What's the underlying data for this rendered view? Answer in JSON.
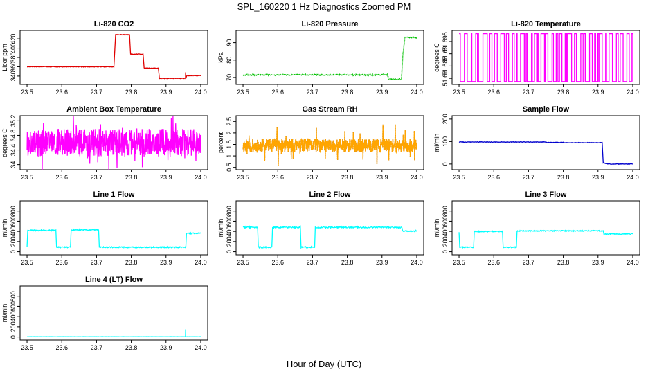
{
  "figure": {
    "title": "SPL_160220  1 Hz Diagnostics Zoomed PM",
    "xlabel": "Hour of Day (UTC)"
  },
  "chart_data": [
    {
      "type": "line",
      "title": "Li-820 CO2",
      "ylabel": "Licor ppm",
      "color": "#e00000",
      "xlim": [
        23.48,
        24.02
      ],
      "ylim": [
        322,
        438
      ],
      "xticks": [
        23.5,
        23.6,
        23.7,
        23.8,
        23.9,
        24.0
      ],
      "yticks": [
        340,
        360,
        380,
        400,
        420
      ],
      "series": [
        {
          "name": "CO2",
          "style": "steps",
          "noise": 0.6,
          "spikes": [
            [
              23.956,
              348
            ]
          ],
          "points": [
            [
              23.5,
              360
            ],
            [
              23.75,
              360
            ],
            [
              23.755,
              429
            ],
            [
              23.795,
              429
            ],
            [
              23.798,
              387
            ],
            [
              23.834,
              387
            ],
            [
              23.837,
              357
            ],
            [
              23.878,
              357
            ],
            [
              23.881,
              335
            ],
            [
              23.957,
              335
            ],
            [
              23.96,
              341
            ],
            [
              24.0,
              341
            ]
          ]
        }
      ]
    },
    {
      "type": "line",
      "title": "Li-820 Pressure",
      "ylabel": "kPa",
      "color": "#00c000",
      "xlim": [
        23.48,
        24.02
      ],
      "ylim": [
        66,
        97
      ],
      "xticks": [
        23.5,
        23.6,
        23.7,
        23.8,
        23.9,
        24.0
      ],
      "yticks": [
        70,
        80,
        90
      ],
      "series": [
        {
          "name": "Pressure",
          "style": "dotted",
          "noise": 0.3,
          "points": [
            [
              23.5,
              71.5
            ],
            [
              23.915,
              71.5
            ],
            [
              23.92,
              69
            ],
            [
              23.956,
              69
            ],
            [
              23.96,
              83
            ],
            [
              23.966,
              93
            ],
            [
              24.0,
              93
            ]
          ]
        }
      ]
    },
    {
      "type": "line",
      "title": "Li-820 Temperature",
      "ylabel": "degrees C",
      "color": "#ff00ff",
      "xlim": [
        23.48,
        24.02
      ],
      "ylim": [
        51.6775,
        51.6995
      ],
      "xticks": [
        23.5,
        23.6,
        23.7,
        23.8,
        23.9,
        24.0
      ],
      "yticks": [
        51.68,
        51.685,
        51.69,
        51.695
      ],
      "series": [
        {
          "name": "Temperature",
          "style": "switch",
          "low": 51.6787,
          "high": 51.6982,
          "bands": 55,
          "seed": 7
        }
      ]
    },
    {
      "type": "line",
      "title": "Ambient Box Temperature",
      "ylabel": "degrees C",
      "color": "#ff00ff",
      "xlim": [
        23.48,
        24.02
      ],
      "ylim": [
        33.86,
        35.34
      ],
      "xticks": [
        23.5,
        23.6,
        23.7,
        23.8,
        23.9,
        24.0
      ],
      "yticks": [
        34.0,
        34.4,
        34.8,
        35.2
      ],
      "series": [
        {
          "name": "Box Temp",
          "style": "noise",
          "mean": 34.6,
          "amp": 0.38,
          "spike": 0.6,
          "seed": 3
        }
      ]
    },
    {
      "type": "line",
      "title": "Gas Stream RH",
      "ylabel": "percent",
      "color": "#ffa500",
      "xlim": [
        23.48,
        24.02
      ],
      "ylim": [
        0.4,
        2.75
      ],
      "xticks": [
        23.5,
        23.6,
        23.7,
        23.8,
        23.9,
        24.0
      ],
      "yticks": [
        0.5,
        1.0,
        1.5,
        2.0,
        2.5
      ],
      "series": [
        {
          "name": "RH",
          "style": "noise",
          "mean": 1.45,
          "amp": 0.3,
          "spike": 0.9,
          "seed": 11,
          "dark": "#8a4000"
        }
      ]
    },
    {
      "type": "line",
      "title": "Sample Flow",
      "ylabel": "ml/min",
      "color": "#0000cd",
      "xlim": [
        23.48,
        24.02
      ],
      "ylim": [
        -25,
        215
      ],
      "xticks": [
        23.5,
        23.6,
        23.7,
        23.8,
        23.9,
        24.0
      ],
      "yticks": [
        0,
        100,
        200
      ],
      "series": [
        {
          "name": "Sample Flow",
          "style": "steps",
          "noise": 1.2,
          "points": [
            [
              23.5,
              98
            ],
            [
              23.75,
              98
            ],
            [
              23.752,
              96
            ],
            [
              23.8,
              96
            ],
            [
              23.802,
              95
            ],
            [
              23.912,
              95
            ],
            [
              23.915,
              5
            ],
            [
              23.93,
              0
            ],
            [
              24.0,
              0
            ]
          ]
        }
      ]
    },
    {
      "type": "line",
      "title": "Line 1 Flow",
      "ylabel": "ml/min",
      "color": "#00ffff",
      "xlim": [
        23.48,
        24.02
      ],
      "ylim": [
        -60,
        1000
      ],
      "xticks": [
        23.5,
        23.6,
        23.7,
        23.8,
        23.9,
        24.0
      ],
      "yticks": [
        0,
        200,
        400,
        600,
        800
      ],
      "series": [
        {
          "name": "Line 1",
          "style": "steps",
          "noise": 12,
          "points": [
            [
              23.5,
              90
            ],
            [
              23.502,
              420
            ],
            [
              23.583,
              420
            ],
            [
              23.585,
              90
            ],
            [
              23.625,
              90
            ],
            [
              23.627,
              430
            ],
            [
              23.706,
              430
            ],
            [
              23.708,
              90
            ],
            [
              23.957,
              90
            ],
            [
              23.959,
              360
            ],
            [
              24.0,
              360
            ]
          ]
        }
      ]
    },
    {
      "type": "line",
      "title": "Line 2 Flow",
      "ylabel": "ml/min",
      "color": "#00ffff",
      "xlim": [
        23.48,
        24.02
      ],
      "ylim": [
        -60,
        1000
      ],
      "xticks": [
        23.5,
        23.6,
        23.7,
        23.8,
        23.9,
        24.0
      ],
      "yticks": [
        0,
        200,
        400,
        600,
        800
      ],
      "series": [
        {
          "name": "Line 2",
          "style": "steps",
          "noise": 14,
          "points": [
            [
              23.5,
              480
            ],
            [
              23.542,
              480
            ],
            [
              23.544,
              90
            ],
            [
              23.583,
              90
            ],
            [
              23.585,
              480
            ],
            [
              23.665,
              480
            ],
            [
              23.667,
              90
            ],
            [
              23.706,
              90
            ],
            [
              23.708,
              480
            ],
            [
              23.957,
              480
            ],
            [
              23.959,
              410
            ],
            [
              24.0,
              410
            ]
          ]
        }
      ]
    },
    {
      "type": "line",
      "title": "Line 3 Flow",
      "ylabel": "ml/min",
      "color": "#00ffff",
      "xlim": [
        23.48,
        24.02
      ],
      "ylim": [
        -60,
        1000
      ],
      "xticks": [
        23.5,
        23.6,
        23.7,
        23.8,
        23.9,
        24.0
      ],
      "yticks": [
        0,
        200,
        400,
        600,
        800
      ],
      "series": [
        {
          "name": "Line 3",
          "style": "steps",
          "noise": 10,
          "points": [
            [
              23.5,
              380
            ],
            [
              23.502,
              90
            ],
            [
              23.542,
              90
            ],
            [
              23.544,
              400
            ],
            [
              23.625,
              400
            ],
            [
              23.627,
              90
            ],
            [
              23.665,
              90
            ],
            [
              23.667,
              410
            ],
            [
              23.915,
              410
            ],
            [
              23.917,
              350
            ],
            [
              24.0,
              350
            ]
          ]
        }
      ]
    },
    {
      "type": "line",
      "title": "Line 4 (LT) Flow",
      "ylabel": "ml/min",
      "color": "#00ffff",
      "xlim": [
        23.48,
        24.02
      ],
      "ylim": [
        -60,
        1000
      ],
      "xticks": [
        23.5,
        23.6,
        23.7,
        23.8,
        23.9,
        24.0
      ],
      "yticks": [
        0,
        200,
        400,
        600,
        800
      ],
      "series": [
        {
          "name": "Line 4",
          "style": "steps",
          "noise": 2,
          "spikes": [
            [
              23.956,
              150
            ]
          ],
          "points": [
            [
              23.5,
              5
            ],
            [
              24.0,
              5
            ]
          ]
        }
      ]
    }
  ]
}
